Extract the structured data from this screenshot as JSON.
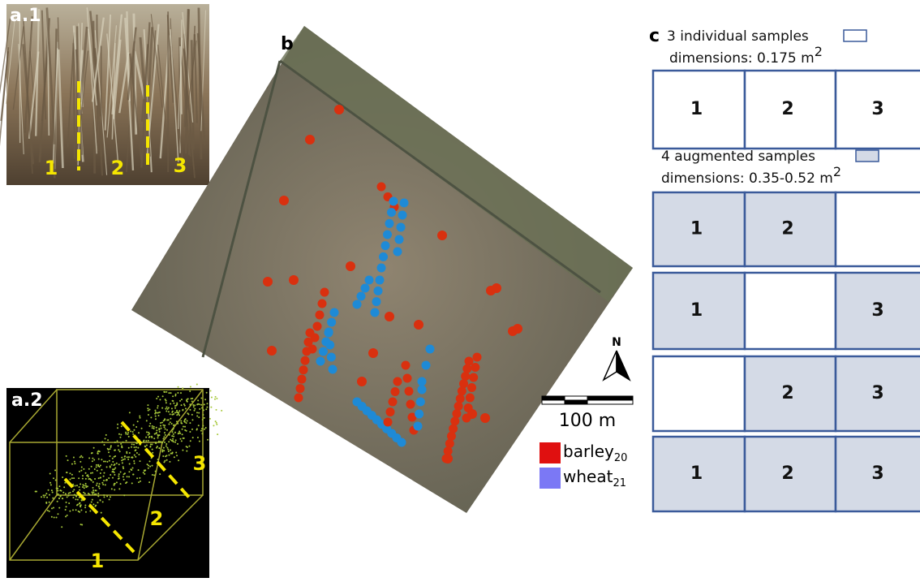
{
  "panel_a1": {
    "label": "a.1",
    "lines": [
      "1",
      "2",
      "3"
    ]
  },
  "panel_a2": {
    "label": "a.2",
    "lines": [
      "1",
      "2",
      "3"
    ]
  },
  "panel_b": {
    "label": "b",
    "north": "N",
    "scale": "100 m",
    "legend": [
      {
        "name": "barley",
        "sub": "20",
        "color": "#e01010"
      },
      {
        "name": "wheat",
        "sub": "21",
        "color": "#7b78f5"
      }
    ]
  },
  "panel_c": {
    "label": "c",
    "individual": {
      "title": "3 individual samples",
      "dimensions": "dimensions: 0.175 m",
      "exponent": "2",
      "cells": [
        {
          "label": "1",
          "shaded": false
        },
        {
          "label": "2",
          "shaded": false
        },
        {
          "label": "3",
          "shaded": false
        }
      ]
    },
    "augmented": {
      "title": "4 augmented samples",
      "dimensions": "dimensions: 0.35-0.52 m",
      "exponent": "2",
      "rows": [
        [
          {
            "label": "1",
            "shaded": true
          },
          {
            "label": "2",
            "shaded": true
          },
          {
            "shaded": false
          }
        ],
        [
          {
            "label": "1",
            "shaded": true
          },
          {
            "shaded": false
          },
          {
            "label": "3",
            "shaded": true
          }
        ],
        [
          {
            "shaded": false
          },
          {
            "label": "2",
            "shaded": true
          },
          {
            "label": "3",
            "shaded": true
          }
        ],
        [
          {
            "label": "1",
            "shaded": true
          },
          {
            "label": "2",
            "shaded": true
          },
          {
            "label": "3",
            "shaded": true
          }
        ]
      ]
    }
  }
}
